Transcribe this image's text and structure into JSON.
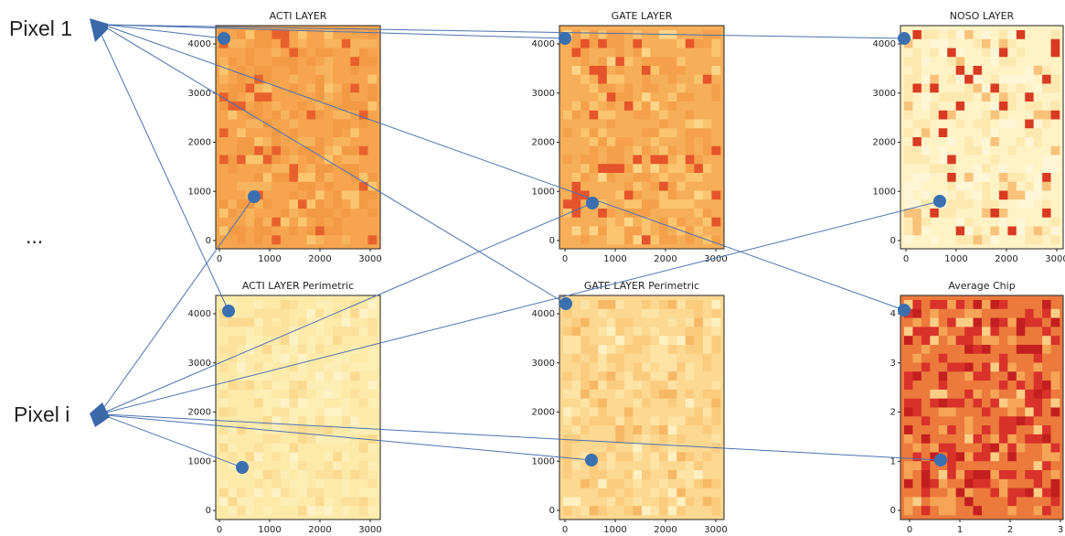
{
  "labels": {
    "pixel_1": "Pixel 1",
    "ellipsis": "...",
    "pixel_i": "Pixel i"
  },
  "panels": [
    {
      "title": "ACTI LAYER",
      "xticks": [
        0,
        1000,
        2000,
        3000
      ],
      "yticks": [
        0,
        1000,
        2000,
        3000,
        4000
      ]
    },
    {
      "title": "GATE LAYER",
      "xticks": [
        0,
        1000,
        2000,
        3000
      ],
      "yticks": [
        0,
        1000,
        2000,
        3000,
        4000
      ]
    },
    {
      "title": "NOSO LAYER",
      "xticks": [
        0,
        1000,
        2000,
        3000
      ],
      "yticks": [
        0,
        1000,
        2000,
        3000,
        4000
      ]
    },
    {
      "title": "ACTI LAYER Perimetric",
      "xticks": [
        0,
        1000,
        2000,
        3000
      ],
      "yticks": [
        0,
        1000,
        2000,
        3000,
        4000
      ]
    },
    {
      "title": "GATE LAYER Perimetric",
      "xticks": [
        0,
        1000,
        2000,
        3000
      ],
      "yticks": [
        0,
        1000,
        2000,
        3000,
        4000
      ]
    },
    {
      "title": "Average Chip",
      "xticks": [
        0,
        1,
        2,
        3
      ],
      "yticks": [
        0,
        1,
        2,
        3,
        4
      ]
    }
  ]
}
